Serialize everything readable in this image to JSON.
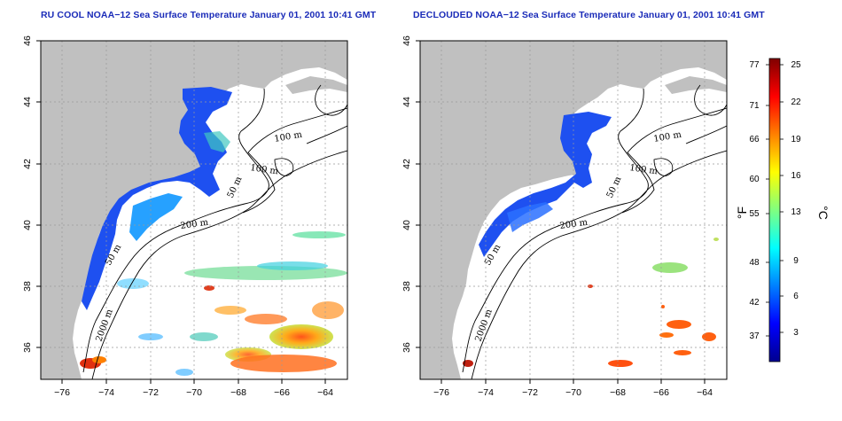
{
  "panels": [
    {
      "id": "ru-cool",
      "title": "RU COOL NOAA−12 Sea Surface Temperature January 01, 2001 10:41 GMT",
      "contour_labels": [
        "100 m",
        "100 m",
        "50 m",
        "200 m",
        "50 m",
        "2000 m"
      ]
    },
    {
      "id": "declouded",
      "title": "DECLOUDED NOAA−12 Sea Surface Temperature January 01, 2001 10:41 GMT",
      "contour_labels": [
        "100 m",
        "100 m",
        "50 m",
        "200 m",
        "50 m",
        "2000 m"
      ]
    }
  ],
  "axes": {
    "lon_ticks": [
      "−76",
      "−74",
      "−72",
      "−70",
      "−68",
      "−66",
      "−64"
    ],
    "lon_values": [
      -76,
      -74,
      -72,
      -70,
      -68,
      -66,
      -64
    ],
    "lat_ticks": [
      "36",
      "38",
      "40",
      "42",
      "44",
      "46"
    ],
    "lat_values": [
      36,
      38,
      40,
      42,
      44,
      46
    ],
    "lon_range": [
      -77,
      -63
    ],
    "lat_range": [
      35,
      46
    ],
    "grid": "dotted"
  },
  "colorbar": {
    "fahrenheit_label": "°F",
    "celsius_label": "°C",
    "fahrenheit_ticks": [
      "77",
      "71",
      "66",
      "60",
      "55",
      "48",
      "42",
      "37"
    ],
    "celsius_ticks": [
      "25",
      "22",
      "19",
      "16",
      "13",
      "9",
      "6",
      "3"
    ],
    "range_celsius": [
      0,
      26
    ],
    "colors": [
      "#00008f",
      "#0000ff",
      "#0080ff",
      "#00ffff",
      "#80ff80",
      "#ffff00",
      "#ff8000",
      "#ff0000",
      "#800000"
    ]
  },
  "colors": {
    "land": "#c0c0c0",
    "ocean": "#ffffff",
    "title": "#1a2bb8"
  }
}
